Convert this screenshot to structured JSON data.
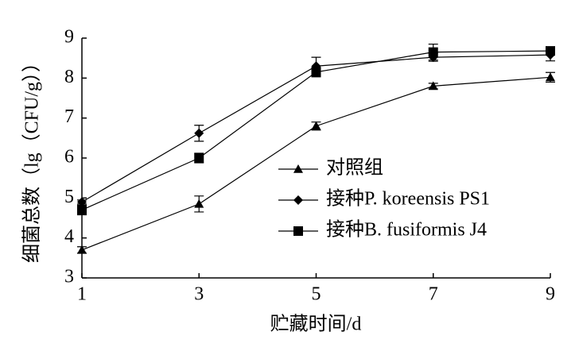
{
  "chart_data": {
    "type": "line",
    "x_label": "贮藏时间/d",
    "y_label": "细菌总数（lg（CFU/g））",
    "x": [
      1,
      3,
      5,
      7,
      9
    ],
    "xlim": [
      1,
      9
    ],
    "xticks": [
      1,
      3,
      5,
      7,
      9
    ],
    "ylim": [
      3,
      9
    ],
    "yticks": [
      3,
      4,
      5,
      6,
      7,
      8,
      9
    ],
    "legend": "center-right",
    "series": [
      {
        "name": "对照组",
        "color": "#000000",
        "marker": "triangle",
        "values": [
          3.7,
          4.85,
          6.8,
          7.8,
          8.02
        ],
        "errors": [
          0.08,
          0.2,
          0.1,
          0.07,
          0.12
        ]
      },
      {
        "name": "接种P. koreensis PS1",
        "color": "#000000",
        "marker": "diamond",
        "values": [
          4.9,
          6.62,
          8.3,
          8.52,
          8.58
        ],
        "errors": [
          0.05,
          0.2,
          0.22,
          0.1,
          0.15
        ]
      },
      {
        "name": "接种B. fusiformis J4",
        "color": "#000000",
        "marker": "square",
        "values": [
          4.7,
          6.0,
          8.15,
          8.65,
          8.68
        ],
        "errors": [
          0.12,
          0.12,
          0.12,
          0.2,
          0.05
        ]
      }
    ]
  }
}
